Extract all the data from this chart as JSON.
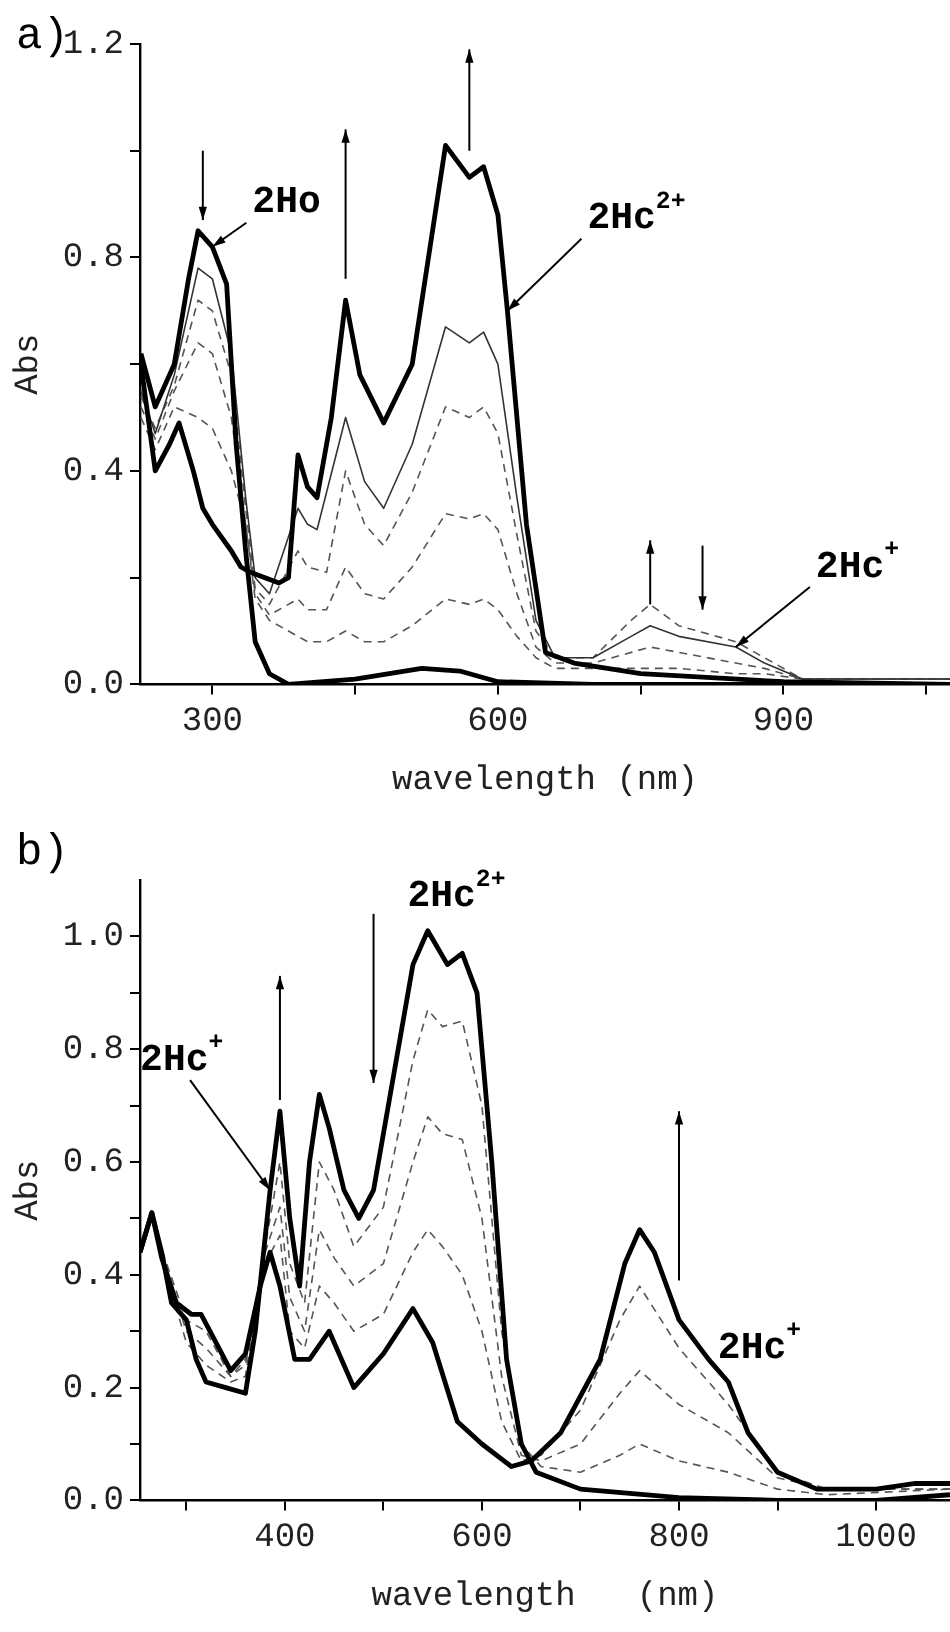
{
  "chart_data": [
    {
      "type": "line",
      "xlabel": "wavelength (nm)",
      "ylabel": "Abs",
      "xlim": [
        224,
        1075
      ],
      "ylim": [
        0,
        1.2
      ],
      "xticks": [
        300,
        {
          "value": 450,
          "label": null
        },
        600,
        {
          "value": 750,
          "label": null
        },
        900,
        {
          "value": 1050,
          "label": null
        }
      ],
      "yticks": [
        {
          "value": 0,
          "label": "0.0"
        },
        {
          "value": 0.2,
          "label": null
        },
        0.4,
        {
          "value": 0.6,
          "label": null
        },
        0.8,
        {
          "value": 1.0,
          "label": null
        },
        1.2
      ],
      "grid": false,
      "legend": false,
      "marker": "none",
      "annotations": [
        "a)",
        {
          "text": "2Ho",
          "x": 300,
          "y": 0.82
        },
        {
          "text": "2Hc$^{2+}$",
          "x": 610,
          "y": 0.7
        },
        {
          "text": "2Hc$^{+}$",
          "x": 850,
          "y": 0.07
        }
      ],
      "series": [
        {
          "color": "#000000",
          "line_style": "solid",
          "x": [
            225,
            240,
            260,
            275,
            285,
            300,
            315,
            325,
            335,
            345,
            360,
            380,
            450,
            520,
            560,
            600,
            700,
            1075
          ],
          "values": [
            0.62,
            0.52,
            0.6,
            0.76,
            0.85,
            0.82,
            0.75,
            0.45,
            0.25,
            0.08,
            0.02,
            0.0,
            0.01,
            0.03,
            0.025,
            0.005,
            0.0,
            0.0
          ]
        },
        {
          "color": "#000000",
          "line_style": "solid",
          "x": [
            225,
            240,
            255,
            265,
            280,
            290,
            300,
            320,
            330,
            340,
            370,
            380,
            390,
            400,
            410,
            425,
            440,
            455,
            480,
            510,
            545,
            570,
            585,
            600,
            610,
            630,
            650,
            680,
            750,
            900,
            1075
          ],
          "values": [
            0.6,
            0.4,
            0.45,
            0.49,
            0.4,
            0.33,
            0.3,
            0.25,
            0.22,
            0.21,
            0.19,
            0.2,
            0.43,
            0.37,
            0.35,
            0.5,
            0.72,
            0.58,
            0.49,
            0.6,
            1.01,
            0.95,
            0.97,
            0.88,
            0.7,
            0.3,
            0.06,
            0.04,
            0.02,
            0.005,
            0.0
          ]
        },
        {
          "color": "#333333",
          "line_style": "solid",
          "x": [
            225,
            240,
            260,
            285,
            300,
            320,
            335,
            345,
            360,
            390,
            400,
            410,
            440,
            460,
            480,
            510,
            545,
            570,
            585,
            600,
            620,
            640,
            660,
            700,
            740,
            760,
            790,
            850,
            880,
            920,
            1075
          ],
          "values": [
            0.55,
            0.47,
            0.58,
            0.78,
            0.76,
            0.62,
            0.35,
            0.2,
            0.17,
            0.33,
            0.3,
            0.29,
            0.5,
            0.38,
            0.33,
            0.45,
            0.67,
            0.64,
            0.66,
            0.6,
            0.35,
            0.12,
            0.05,
            0.05,
            0.09,
            0.11,
            0.09,
            0.07,
            0.04,
            0.01,
            0.01
          ]
        },
        {
          "color": "#555555",
          "line_style": "dashed",
          "x": [
            225,
            240,
            260,
            285,
            300,
            320,
            335,
            345,
            360,
            390,
            400,
            420,
            440,
            460,
            480,
            510,
            545,
            570,
            585,
            600,
            620,
            640,
            660,
            700,
            740,
            760,
            790,
            850,
            880,
            920,
            1075
          ],
          "values": [
            0.54,
            0.48,
            0.56,
            0.72,
            0.7,
            0.58,
            0.33,
            0.18,
            0.15,
            0.25,
            0.22,
            0.21,
            0.4,
            0.3,
            0.26,
            0.36,
            0.52,
            0.5,
            0.52,
            0.47,
            0.28,
            0.1,
            0.05,
            0.05,
            0.12,
            0.15,
            0.11,
            0.08,
            0.05,
            0.01,
            0.01
          ]
        },
        {
          "color": "#555555",
          "line_style": "dashed",
          "x": [
            225,
            240,
            260,
            285,
            300,
            320,
            335,
            345,
            360,
            390,
            400,
            420,
            440,
            460,
            480,
            510,
            545,
            570,
            585,
            600,
            620,
            640,
            660,
            700,
            740,
            760,
            790,
            850,
            880,
            920,
            1075
          ],
          "values": [
            0.52,
            0.46,
            0.55,
            0.64,
            0.62,
            0.5,
            0.3,
            0.17,
            0.13,
            0.16,
            0.14,
            0.14,
            0.22,
            0.17,
            0.16,
            0.22,
            0.32,
            0.31,
            0.32,
            0.29,
            0.17,
            0.07,
            0.04,
            0.04,
            0.06,
            0.07,
            0.06,
            0.04,
            0.03,
            0.01,
            0.01
          ]
        },
        {
          "color": "#555555",
          "line_style": "dashed",
          "x": [
            225,
            240,
            260,
            285,
            300,
            320,
            335,
            345,
            360,
            390,
            400,
            420,
            440,
            460,
            480,
            510,
            545,
            570,
            585,
            600,
            620,
            640,
            660,
            700,
            740,
            760,
            790,
            850,
            880,
            920,
            1075
          ],
          "values": [
            0.5,
            0.44,
            0.52,
            0.5,
            0.48,
            0.4,
            0.3,
            0.16,
            0.12,
            0.09,
            0.08,
            0.08,
            0.1,
            0.08,
            0.08,
            0.11,
            0.16,
            0.15,
            0.16,
            0.14,
            0.09,
            0.05,
            0.03,
            0.03,
            0.03,
            0.03,
            0.03,
            0.02,
            0.02,
            0.01,
            0.01
          ]
        }
      ]
    },
    {
      "type": "line",
      "xlabel": "wavelength   (nm)",
      "ylabel": "Abs",
      "xlim": [
        253,
        1075
      ],
      "ylim": [
        0,
        1.1
      ],
      "xticks": [
        {
          "value": 300,
          "label": null
        },
        400,
        {
          "value": 500,
          "label": null
        },
        600,
        {
          "value": 700,
          "label": null
        },
        800,
        {
          "value": 900,
          "label": null
        },
        1000
      ],
      "yticks": [
        {
          "value": 0,
          "label": "0.0"
        },
        {
          "value": 0.1,
          "label": null
        },
        0.2,
        {
          "value": 0.3,
          "label": null
        },
        0.4,
        {
          "value": 0.5,
          "label": null
        },
        0.6,
        {
          "value": 0.7,
          "label": null
        },
        0.8,
        {
          "value": 0.9,
          "label": null
        },
        {
          "value": 1.0,
          "label": "1.0"
        }
      ],
      "grid": false,
      "legend": false,
      "marker": "none",
      "annotations": [
        "b)",
        "2Hc$^{2+}$",
        {
          "text": "2Hc$^{+}$",
          "x": 385,
          "y": 0.55
        },
        "2Hc$^{+}$"
      ],
      "series": [
        {
          "color": "#000000",
          "line_style": "solid",
          "x": [
            253,
            265,
            275,
            285,
            300,
            310,
            320,
            340,
            360,
            370,
            385,
            395,
            405,
            415,
            425,
            435,
            445,
            460,
            475,
            490,
            510,
            530,
            545,
            565,
            580,
            595,
            610,
            625,
            640,
            655,
            700,
            800,
            900,
            1000,
            1075
          ],
          "values": [
            0.44,
            0.51,
            0.44,
            0.35,
            0.32,
            0.25,
            0.21,
            0.2,
            0.19,
            0.3,
            0.55,
            0.69,
            0.5,
            0.38,
            0.6,
            0.72,
            0.66,
            0.55,
            0.5,
            0.55,
            0.75,
            0.95,
            1.01,
            0.95,
            0.97,
            0.9,
            0.6,
            0.25,
            0.1,
            0.05,
            0.02,
            0.005,
            0.0,
            0.0,
            0.01
          ]
        },
        {
          "color": "#000000",
          "line_style": "solid",
          "x": [
            253,
            265,
            275,
            290,
            305,
            315,
            330,
            345,
            360,
            375,
            385,
            395,
            410,
            425,
            445,
            470,
            500,
            530,
            550,
            575,
            600,
            630,
            650,
            680,
            720,
            745,
            760,
            775,
            800,
            830,
            850,
            870,
            900,
            940,
            1000,
            1040,
            1075
          ],
          "values": [
            0.44,
            0.51,
            0.43,
            0.35,
            0.33,
            0.33,
            0.28,
            0.23,
            0.26,
            0.38,
            0.44,
            0.38,
            0.25,
            0.25,
            0.3,
            0.2,
            0.26,
            0.34,
            0.28,
            0.14,
            0.1,
            0.06,
            0.07,
            0.12,
            0.25,
            0.42,
            0.48,
            0.44,
            0.32,
            0.25,
            0.21,
            0.12,
            0.05,
            0.02,
            0.02,
            0.03,
            0.03
          ]
        },
        {
          "color": "#555555",
          "line_style": "dashed",
          "x": [
            253,
            265,
            280,
            300,
            320,
            345,
            360,
            380,
            395,
            405,
            420,
            435,
            450,
            470,
            500,
            530,
            545,
            560,
            580,
            600,
            620,
            640,
            660,
            700,
            740,
            760,
            800,
            850,
            900,
            950,
            1075
          ],
          "values": [
            0.44,
            0.5,
            0.4,
            0.28,
            0.24,
            0.21,
            0.22,
            0.45,
            0.6,
            0.42,
            0.35,
            0.6,
            0.55,
            0.45,
            0.52,
            0.78,
            0.87,
            0.84,
            0.85,
            0.7,
            0.3,
            0.1,
            0.06,
            0.05,
            0.08,
            0.1,
            0.07,
            0.05,
            0.02,
            0.01,
            0.02
          ]
        },
        {
          "color": "#555555",
          "line_style": "dashed",
          "x": [
            253,
            265,
            280,
            300,
            320,
            345,
            360,
            380,
            395,
            405,
            420,
            435,
            450,
            470,
            500,
            530,
            545,
            560,
            580,
            600,
            620,
            640,
            660,
            700,
            740,
            760,
            800,
            850,
            900,
            950,
            1075
          ],
          "values": [
            0.44,
            0.5,
            0.41,
            0.3,
            0.27,
            0.22,
            0.24,
            0.44,
            0.52,
            0.36,
            0.3,
            0.48,
            0.43,
            0.38,
            0.42,
            0.6,
            0.68,
            0.65,
            0.64,
            0.5,
            0.22,
            0.08,
            0.07,
            0.1,
            0.19,
            0.23,
            0.17,
            0.12,
            0.04,
            0.02,
            0.02
          ]
        },
        {
          "color": "#555555",
          "line_style": "dashed",
          "x": [
            253,
            265,
            280,
            300,
            320,
            345,
            360,
            380,
            395,
            405,
            420,
            435,
            450,
            470,
            500,
            530,
            545,
            560,
            580,
            600,
            620,
            640,
            660,
            700,
            740,
            760,
            800,
            850,
            900,
            950,
            1075
          ],
          "values": [
            0.44,
            0.5,
            0.42,
            0.32,
            0.3,
            0.22,
            0.25,
            0.42,
            0.47,
            0.3,
            0.27,
            0.38,
            0.35,
            0.3,
            0.33,
            0.44,
            0.48,
            0.45,
            0.4,
            0.3,
            0.14,
            0.07,
            0.08,
            0.16,
            0.32,
            0.38,
            0.27,
            0.17,
            0.05,
            0.02,
            0.02
          ]
        }
      ]
    }
  ]
}
